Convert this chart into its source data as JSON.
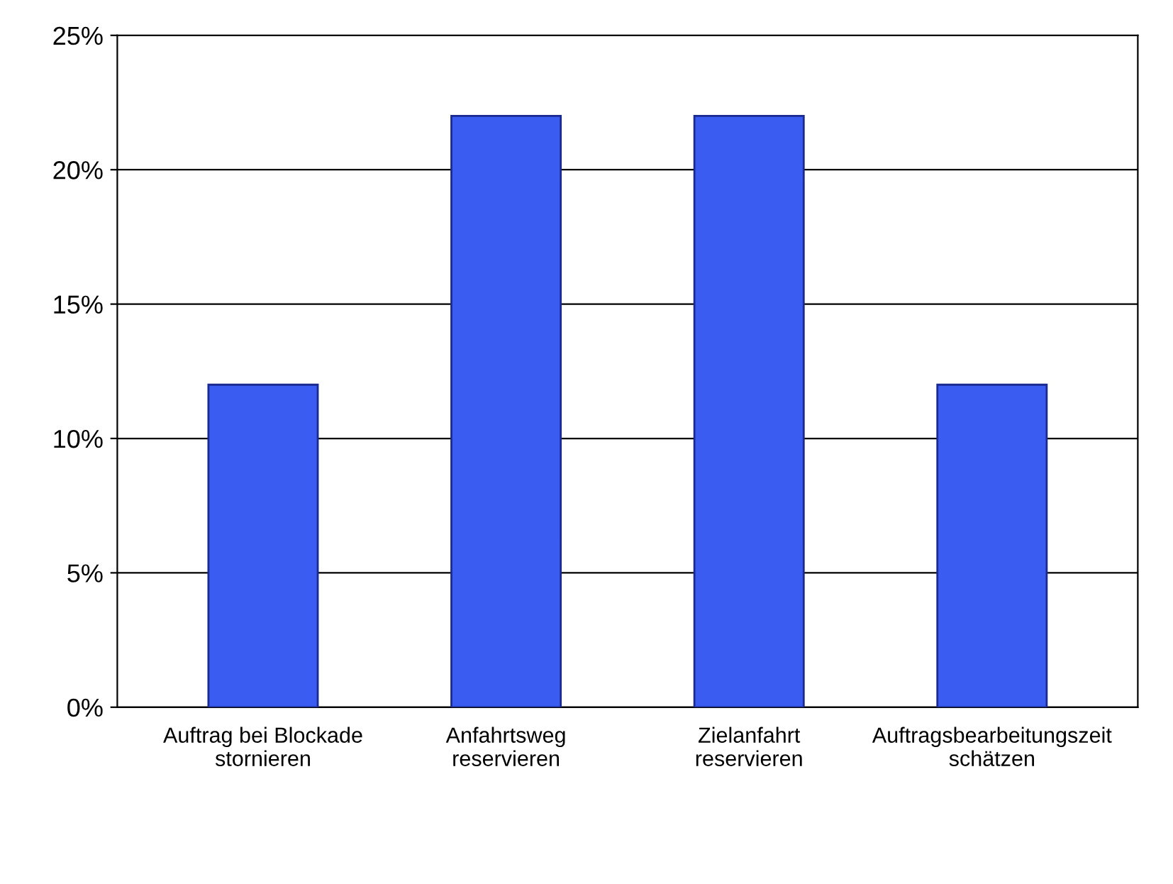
{
  "chart_data": {
    "type": "bar",
    "categories": [
      "Auftrag bei Blockade\nstornieren",
      "Anfahrtsweg\nreservieren",
      "Zielanfahrt\nreservieren",
      "Auftragsbearbeitungszeit\nschätzen"
    ],
    "values": [
      12,
      22,
      22,
      12
    ],
    "color": "#3a5cf0",
    "ylim": [
      0,
      25
    ],
    "yticks": [
      {
        "value": 0,
        "label": "0%"
      },
      {
        "value": 5,
        "label": "5%"
      },
      {
        "value": 10,
        "label": "10%"
      },
      {
        "value": 15,
        "label": "15%"
      },
      {
        "value": 20,
        "label": "20%"
      },
      {
        "value": 25,
        "label": "25%"
      }
    ],
    "grid": "y"
  }
}
